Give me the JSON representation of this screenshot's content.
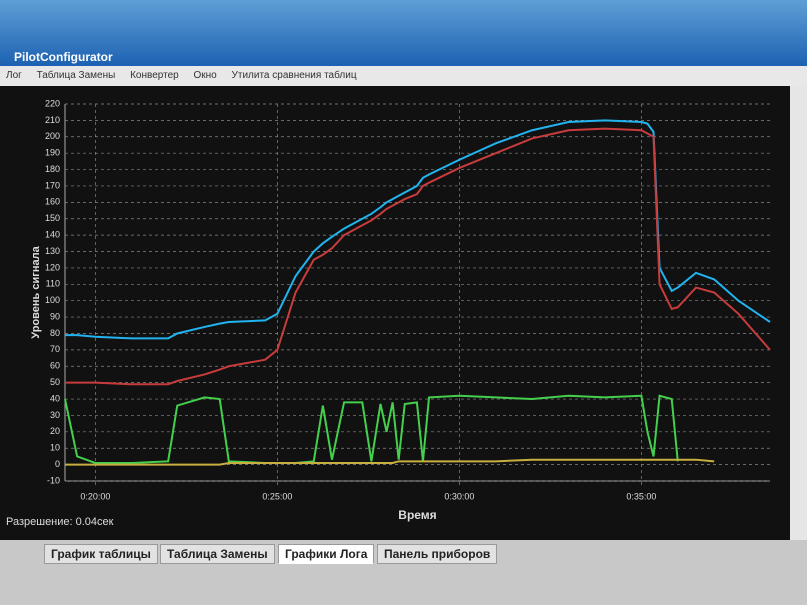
{
  "window": {
    "title": "PilotConfigurator"
  },
  "menu": [
    "Лог",
    "Таблица Замены",
    "Конвертер",
    "Окно",
    "Утилита сравнения таблиц"
  ],
  "chart_data": {
    "type": "line",
    "ylabel": "Уровень сигнала",
    "xlabel": "Время",
    "x": [
      1150,
      1170,
      1200,
      1260,
      1320,
      1335,
      1380,
      1405,
      1420,
      1480,
      1500,
      1530,
      1560,
      1575,
      1590,
      1610,
      1640,
      1655,
      1670,
      1680,
      1690,
      1700,
      1710,
      1730,
      1740,
      1750,
      1800,
      1860,
      1920,
      1980,
      2040,
      2100,
      2110,
      2120,
      2130,
      2150,
      2160,
      2190,
      2220,
      2260,
      2312
    ],
    "series": [
      {
        "color": "#22b4f0",
        "values": [
          79,
          79,
          78,
          77,
          77,
          80,
          84,
          86,
          87,
          88,
          92,
          115,
          130,
          135,
          139,
          144,
          150,
          153,
          157,
          160,
          162,
          164,
          166,
          170,
          175,
          177,
          186,
          196,
          204,
          209,
          210,
          209,
          208,
          203,
          120,
          106,
          108,
          117,
          113,
          100,
          87
        ]
      },
      {
        "color": "#c83c3c",
        "values": [
          50,
          50,
          50,
          49,
          49,
          51,
          55,
          58,
          60,
          64,
          70,
          105,
          125,
          128,
          132,
          140,
          146,
          149,
          153,
          156,
          158,
          160,
          162,
          165,
          170,
          172,
          181,
          190,
          199,
          204,
          205,
          204,
          202,
          200,
          110,
          95,
          96,
          108,
          105,
          92,
          70
        ]
      },
      {
        "color": "#44d04c",
        "values": [
          40,
          5,
          1,
          1,
          2,
          36,
          41,
          40,
          2,
          1,
          1,
          1,
          2,
          36,
          3,
          38,
          38,
          2,
          37,
          20,
          38,
          3,
          37,
          38,
          2,
          41,
          42,
          41,
          40,
          42,
          41,
          42,
          20,
          5,
          42,
          40,
          2,
          null,
          null,
          null,
          null
        ]
      },
      {
        "color": "#c8b040",
        "values": [
          0,
          0,
          0,
          0,
          0,
          0,
          0,
          0,
          1,
          1,
          1,
          1,
          1,
          1,
          1,
          1,
          1,
          1,
          1,
          1,
          1,
          2,
          2,
          2,
          2,
          2,
          2,
          2,
          3,
          3,
          3,
          3,
          3,
          3,
          3,
          3,
          3,
          3,
          2,
          null,
          null
        ]
      }
    ],
    "xlim": [
      1150,
      2312
    ],
    "ylim": [
      -10,
      220
    ],
    "xticks": [
      {
        "value": 1200,
        "label": "0:20:00"
      },
      {
        "value": 1500,
        "label": "0:25:00"
      },
      {
        "value": 1800,
        "label": "0:30:00"
      },
      {
        "value": 2100,
        "label": "0:35:00"
      }
    ],
    "yticks": [
      -10,
      0,
      10,
      20,
      30,
      40,
      50,
      60,
      70,
      80,
      90,
      100,
      110,
      120,
      130,
      140,
      150,
      160,
      170,
      180,
      190,
      200,
      210,
      220
    ],
    "grid": true
  },
  "status": "Разрешение: 0.04сек",
  "tabs": [
    "График таблицы",
    "Таблица Замены",
    "Графики Лога",
    "Панель приборов"
  ]
}
